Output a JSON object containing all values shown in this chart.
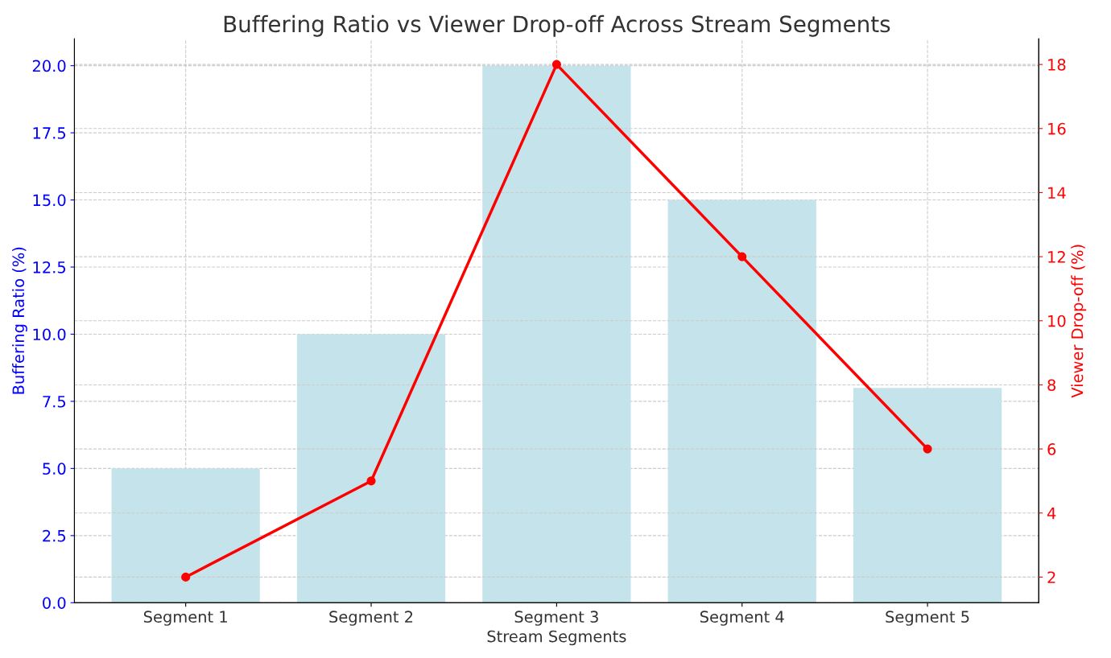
{
  "chart_data": {
    "type": "bar",
    "title": "Buffering Ratio vs Viewer Drop-off Across Stream Segments",
    "xlabel": "Stream Segments",
    "ylabel": "Buffering Ratio (%)",
    "y2label": "Viewer Drop-off (%)",
    "categories": [
      "Segment 1",
      "Segment 2",
      "Segment 3",
      "Segment 4",
      "Segment 5"
    ],
    "series": [
      {
        "color": "#c5e3ea",
        "values": [
          5,
          10,
          20,
          15,
          8
        ]
      },
      {
        "type": "line",
        "axis": "y2",
        "color": "#ff0000",
        "values": [
          2,
          5,
          18,
          12,
          6
        ],
        "marker": "circle",
        "line_style": "solid"
      }
    ],
    "ylim": [
      0,
      21
    ],
    "yticks": [
      {
        "value": 0,
        "label": "0.0"
      },
      {
        "value": 2.5,
        "label": "2.5"
      },
      {
        "value": 5,
        "label": "5.0"
      },
      {
        "value": 7.5,
        "label": "7.5"
      },
      {
        "value": 10,
        "label": "10.0"
      },
      {
        "value": 12.5,
        "label": "12.5"
      },
      {
        "value": 15,
        "label": "15.0"
      },
      {
        "value": 17.5,
        "label": "17.5"
      },
      {
        "value": 20,
        "label": "20.0"
      }
    ],
    "y2lim": [
      1.2,
      18.8
    ],
    "y2ticks": [
      2,
      4,
      6,
      8,
      10,
      12,
      14,
      16,
      18
    ],
    "grid": true,
    "legend": false
  }
}
